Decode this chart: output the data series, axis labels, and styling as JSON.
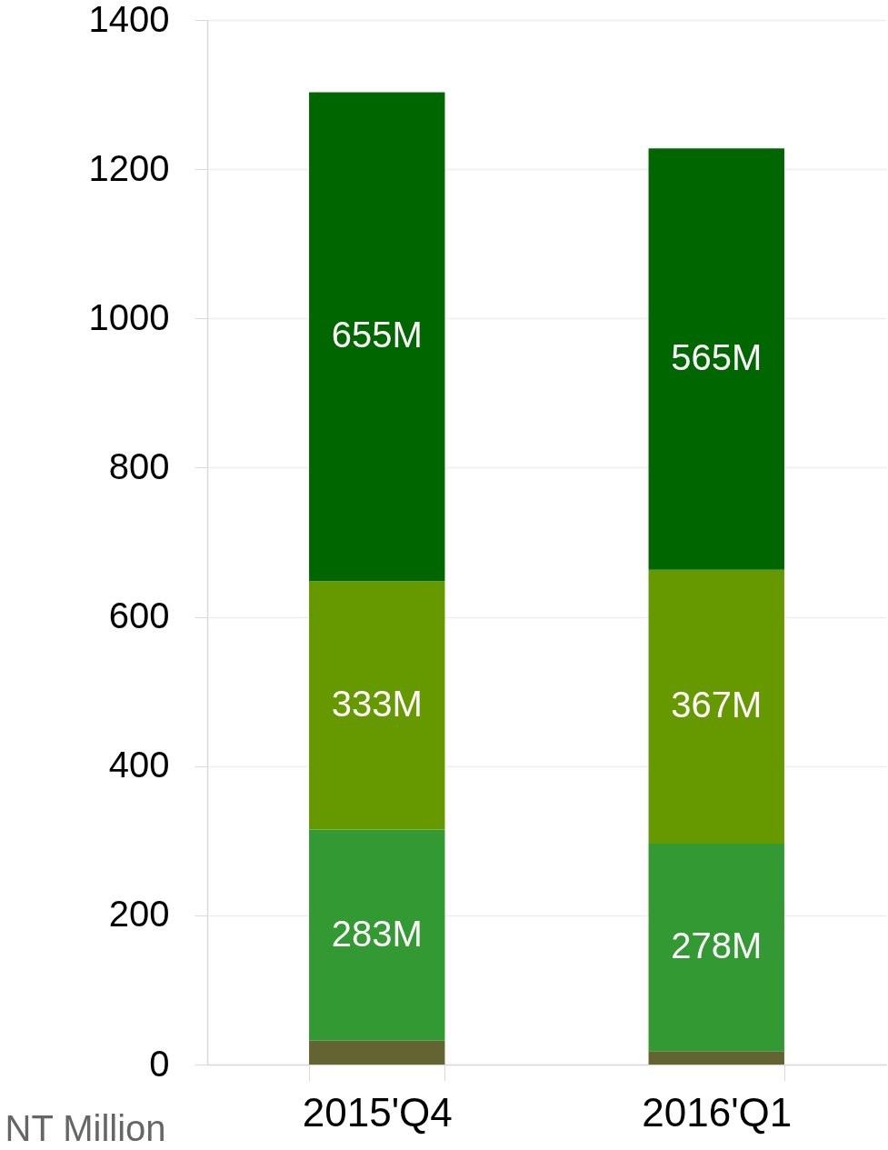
{
  "chart_data": {
    "type": "bar",
    "stacked": true,
    "ylabel": "NT Million",
    "categories": [
      "2015'Q4",
      "2016'Q1"
    ],
    "series": [
      {
        "color": "#646432",
        "values": [
          32,
          18
        ],
        "value_labels": [
          null,
          null
        ]
      },
      {
        "color": "#339933",
        "values": [
          283,
          278
        ],
        "value_labels": [
          "283M",
          "278M"
        ]
      },
      {
        "color": "#669900",
        "values": [
          333,
          367
        ],
        "value_labels": [
          "333M",
          "367M"
        ]
      },
      {
        "color": "#006600",
        "values": [
          655,
          565
        ],
        "value_labels": [
          "655M",
          "565M"
        ]
      }
    ],
    "ylim": [
      0,
      1400
    ],
    "yticks": [
      0,
      200,
      400,
      600,
      800,
      1000,
      1200,
      1400
    ],
    "grid": "y"
  }
}
